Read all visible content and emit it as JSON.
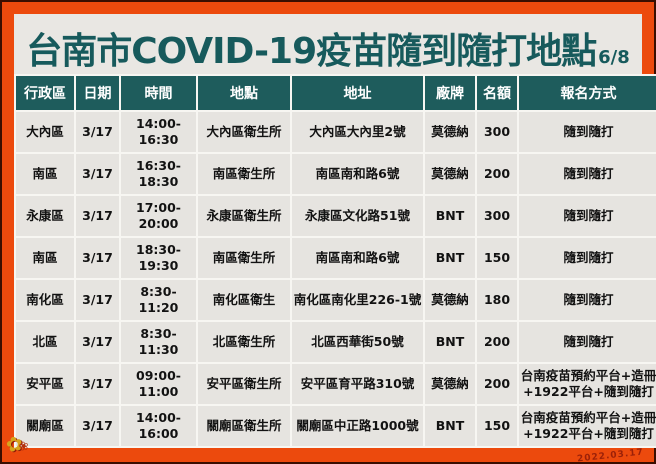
{
  "page": {
    "title": "台南市COVID-19疫苗隨到隨打地點",
    "page_indicator": "6/8",
    "watermark_date": "2022.03.17"
  },
  "colors": {
    "border_orange": "#ec4a0d",
    "panel_gray": "#e9e7e3",
    "header_teal": "#1e5c5c",
    "title_teal": "#175a5c",
    "cell_gray": "#e6e4e0",
    "text_black": "#121212",
    "watermark_red": "#8f1a08"
  },
  "decoration": {
    "flower_icon": "✿",
    "flower_icon_small": "❀"
  },
  "table": {
    "columns": [
      "行政區",
      "日期",
      "時間",
      "地點",
      "地址",
      "廠牌",
      "名額",
      "報名方式"
    ],
    "rows": [
      [
        "大內區",
        "3/17",
        "14:00-16:30",
        "大內區衛生所",
        "大內區大內里2號",
        "莫德納",
        "300",
        "隨到隨打"
      ],
      [
        "南區",
        "3/17",
        "16:30-18:30",
        "南區衛生所",
        "南區南和路6號",
        "莫德納",
        "200",
        "隨到隨打"
      ],
      [
        "永康區",
        "3/17",
        "17:00-20:00",
        "永康區衛生所",
        "永康區文化路51號",
        "BNT",
        "300",
        "隨到隨打"
      ],
      [
        "南區",
        "3/17",
        "18:30-19:30",
        "南區衛生所",
        "南區南和路6號",
        "BNT",
        "150",
        "隨到隨打"
      ],
      [
        "南化區",
        "3/17",
        "8:30-11:20",
        "南化區衛生",
        "南化區南化里226-1號",
        "莫德納",
        "180",
        "隨到隨打"
      ],
      [
        "北區",
        "3/17",
        "8:30-11:30",
        "北區衛生所",
        "北區西華街50號",
        "BNT",
        "200",
        "隨到隨打"
      ],
      [
        "安平區",
        "3/17",
        "09:00-11:00",
        "安平區衛生所",
        "安平區育平路310號",
        "莫德納",
        "200",
        "台南疫苗預約平台+造冊+1922平台+隨到隨打"
      ],
      [
        "關廟區",
        "3/17",
        "14:00-16:00",
        "關廟區衛生所",
        "關廟區中正路1000號",
        "BNT",
        "150",
        "台南疫苗預約平台+造冊+1922平台+隨到隨打"
      ]
    ]
  }
}
